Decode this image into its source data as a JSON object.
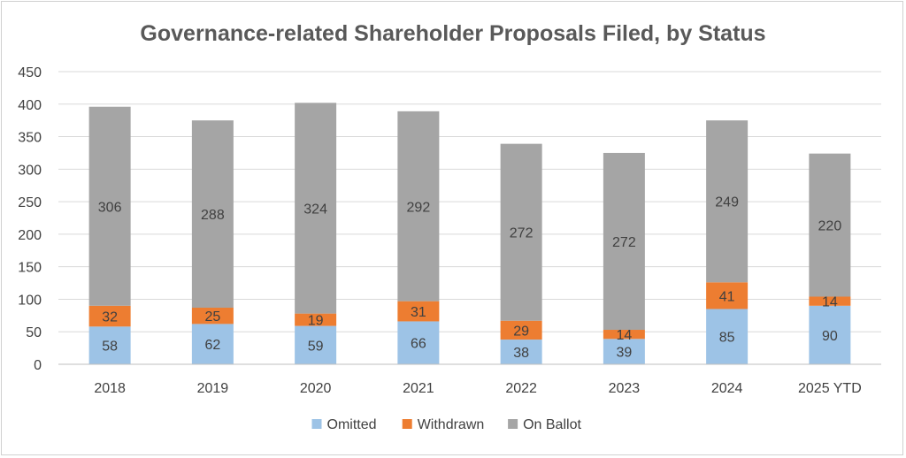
{
  "chart_data": {
    "type": "bar",
    "stacked": true,
    "title": "Governance-related Shareholder Proposals Filed, by Status",
    "xlabel": "",
    "ylabel": "",
    "ylim": [
      0,
      450
    ],
    "yticks": [
      0,
      50,
      100,
      150,
      200,
      250,
      300,
      350,
      400,
      450
    ],
    "grid": true,
    "legend_position": "bottom",
    "categories": [
      "2018",
      "2019",
      "2020",
      "2021",
      "2022",
      "2023",
      "2024",
      "2025 YTD"
    ],
    "series": [
      {
        "name": "Omitted",
        "color": "#9dc3e6",
        "values": [
          58,
          62,
          59,
          66,
          38,
          39,
          85,
          90
        ]
      },
      {
        "name": "Withdrawn",
        "color": "#ed7d31",
        "values": [
          32,
          25,
          19,
          31,
          29,
          14,
          41,
          14
        ]
      },
      {
        "name": "On Ballot",
        "color": "#a5a5a5",
        "values": [
          306,
          288,
          324,
          292,
          272,
          272,
          249,
          220
        ]
      }
    ]
  }
}
